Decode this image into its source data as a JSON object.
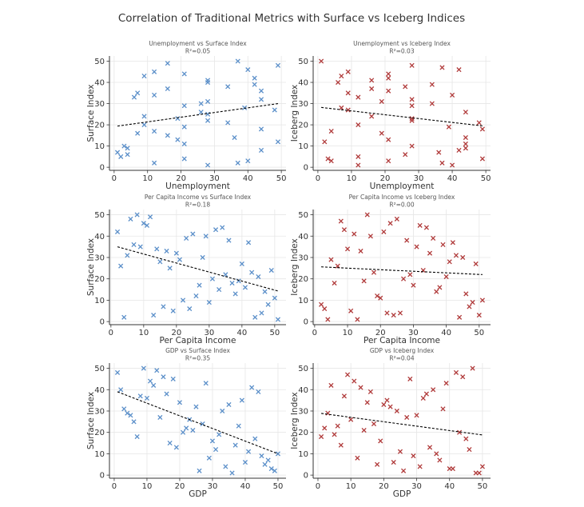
{
  "title": "Correlation of Traditional Metrics with Surface vs Iceberg Indices",
  "colors": {
    "surface": "#5b8fc9",
    "iceberg": "#b03a3a",
    "trend": "#000000"
  },
  "chart_data": [
    {
      "type": "scatter",
      "title": "Unemployment vs Surface Index",
      "r2_label": "R²=0.05",
      "xlabel": "Unemployment",
      "ylabel": "Surface Index",
      "series": "surface",
      "marker": "x",
      "grid": true,
      "xlim": [
        -1.4,
        51.4
      ],
      "ylim": [
        -1.45,
        52.45
      ],
      "xticks": [
        "0",
        "10",
        "20",
        "30",
        "40",
        "50"
      ],
      "yticks": [
        "0",
        "10",
        "20",
        "30",
        "40",
        "50"
      ],
      "trend": [
        [
          1,
          19.4
        ],
        [
          49,
          30.0
        ]
      ],
      "points": [
        [
          1,
          7
        ],
        [
          2,
          5
        ],
        [
          3,
          10
        ],
        [
          4,
          9
        ],
        [
          4,
          6
        ],
        [
          6,
          33
        ],
        [
          7,
          35
        ],
        [
          7,
          16
        ],
        [
          9,
          43
        ],
        [
          9,
          24
        ],
        [
          9,
          20
        ],
        [
          12,
          45
        ],
        [
          12,
          34
        ],
        [
          12,
          17
        ],
        [
          12,
          2
        ],
        [
          16,
          49
        ],
        [
          16,
          37
        ],
        [
          16,
          15
        ],
        [
          19,
          23
        ],
        [
          19,
          13
        ],
        [
          21,
          44
        ],
        [
          21,
          29
        ],
        [
          21,
          19
        ],
        [
          21,
          11
        ],
        [
          21,
          4
        ],
        [
          26,
          30
        ],
        [
          26,
          26
        ],
        [
          28,
          41
        ],
        [
          28,
          40
        ],
        [
          28,
          31
        ],
        [
          28,
          25
        ],
        [
          28,
          22
        ],
        [
          28,
          1
        ],
        [
          34,
          38
        ],
        [
          34,
          21
        ],
        [
          36,
          14
        ],
        [
          37,
          50
        ],
        [
          37,
          2
        ],
        [
          39,
          28
        ],
        [
          40,
          46
        ],
        [
          40,
          3
        ],
        [
          42,
          42
        ],
        [
          42,
          39
        ],
        [
          44,
          36
        ],
        [
          44,
          32
        ],
        [
          44,
          18
        ],
        [
          44,
          8
        ],
        [
          48,
          27
        ],
        [
          49,
          48
        ],
        [
          49,
          12
        ]
      ]
    },
    {
      "type": "scatter",
      "title": "Unemployment vs Iceberg Index",
      "r2_label": "R²=0.03",
      "xlabel": "Unemployment",
      "ylabel": "Iceberg Index",
      "series": "iceberg",
      "marker": "x",
      "grid": true,
      "xlim": [
        -1.4,
        51.4
      ],
      "ylim": [
        -1.45,
        52.45
      ],
      "xticks": [
        "0",
        "10",
        "20",
        "30",
        "40",
        "50"
      ],
      "yticks": [
        "0",
        "10",
        "20",
        "30",
        "40",
        "50"
      ],
      "trend": [
        [
          1,
          28.2
        ],
        [
          49,
          19.5
        ]
      ],
      "points": [
        [
          1,
          50
        ],
        [
          2,
          12
        ],
        [
          3,
          4
        ],
        [
          4,
          17
        ],
        [
          4,
          3
        ],
        [
          6,
          40
        ],
        [
          7,
          43
        ],
        [
          7,
          28
        ],
        [
          9,
          45
        ],
        [
          9,
          35
        ],
        [
          9,
          27
        ],
        [
          12,
          33
        ],
        [
          12,
          20
        ],
        [
          12,
          5
        ],
        [
          12,
          1
        ],
        [
          16,
          41
        ],
        [
          16,
          37
        ],
        [
          16,
          24
        ],
        [
          19,
          31
        ],
        [
          19,
          16
        ],
        [
          21,
          44
        ],
        [
          21,
          42
        ],
        [
          21,
          36
        ],
        [
          21,
          13
        ],
        [
          21,
          3
        ],
        [
          26,
          38
        ],
        [
          26,
          6
        ],
        [
          28,
          48
        ],
        [
          28,
          32
        ],
        [
          28,
          29
        ],
        [
          28,
          23
        ],
        [
          28,
          22
        ],
        [
          28,
          10
        ],
        [
          34,
          39
        ],
        [
          34,
          30
        ],
        [
          36,
          7
        ],
        [
          37,
          47
        ],
        [
          37,
          2
        ],
        [
          39,
          19
        ],
        [
          40,
          34
        ],
        [
          40,
          1
        ],
        [
          42,
          46
        ],
        [
          42,
          8
        ],
        [
          44,
          26
        ],
        [
          44,
          14
        ],
        [
          44,
          11
        ],
        [
          44,
          9
        ],
        [
          48,
          21
        ],
        [
          49,
          18
        ],
        [
          49,
          4
        ]
      ]
    },
    {
      "type": "scatter",
      "title": "Per Capita Income vs Surface Index",
      "r2_label": "R²=0.18",
      "xlabel": "Per Capita Income",
      "ylabel": "Surface Index",
      "series": "surface",
      "marker": "x",
      "grid": true,
      "xlim": [
        -0.45,
        53.45
      ],
      "ylim": [
        -1.45,
        52.45
      ],
      "xticks": [
        "0",
        "10",
        "20",
        "30",
        "40",
        "50"
      ],
      "yticks": [
        "0",
        "10",
        "20",
        "30",
        "40",
        "50"
      ],
      "trend": [
        [
          2,
          35.0
        ],
        [
          51,
          14.3
        ]
      ],
      "points": [
        [
          2,
          42
        ],
        [
          3,
          26
        ],
        [
          4,
          2
        ],
        [
          5,
          31
        ],
        [
          6,
          48
        ],
        [
          7,
          36
        ],
        [
          8,
          50
        ],
        [
          9,
          35
        ],
        [
          10,
          46
        ],
        [
          11,
          45
        ],
        [
          12,
          49
        ],
        [
          13,
          3
        ],
        [
          14,
          34
        ],
        [
          15,
          28
        ],
        [
          16,
          7
        ],
        [
          17,
          33
        ],
        [
          18,
          25
        ],
        [
          19,
          5
        ],
        [
          20,
          32
        ],
        [
          21,
          29
        ],
        [
          22,
          10
        ],
        [
          23,
          39
        ],
        [
          24,
          6
        ],
        [
          25,
          41
        ],
        [
          26,
          12
        ],
        [
          27,
          17
        ],
        [
          28,
          30
        ],
        [
          29,
          40
        ],
        [
          30,
          9
        ],
        [
          31,
          20
        ],
        [
          32,
          43
        ],
        [
          33,
          15
        ],
        [
          34,
          44
        ],
        [
          35,
          22
        ],
        [
          36,
          38
        ],
        [
          37,
          18
        ],
        [
          38,
          13
        ],
        [
          39,
          19
        ],
        [
          40,
          27
        ],
        [
          41,
          16
        ],
        [
          42,
          37
        ],
        [
          43,
          23
        ],
        [
          44,
          2
        ],
        [
          45,
          21
        ],
        [
          46,
          4
        ],
        [
          47,
          14
        ],
        [
          48,
          8
        ],
        [
          49,
          24
        ],
        [
          50,
          11
        ],
        [
          51,
          1
        ]
      ]
    },
    {
      "type": "scatter",
      "title": "Per Capita Income vs Iceberg Index",
      "r2_label": "R²=0.00",
      "xlabel": "Per Capita Income",
      "ylabel": "Iceberg Index",
      "series": "iceberg",
      "marker": "x",
      "grid": true,
      "xlim": [
        -0.45,
        53.45
      ],
      "ylim": [
        -1.45,
        52.45
      ],
      "xticks": [
        "0",
        "10",
        "20",
        "30",
        "40",
        "50"
      ],
      "yticks": [
        "0",
        "10",
        "20",
        "30",
        "40",
        "50"
      ],
      "trend": [
        [
          2,
          25.6
        ],
        [
          51,
          22.0
        ]
      ],
      "points": [
        [
          2,
          8
        ],
        [
          3,
          6
        ],
        [
          4,
          1
        ],
        [
          5,
          29
        ],
        [
          6,
          18
        ],
        [
          7,
          26
        ],
        [
          8,
          47
        ],
        [
          9,
          43
        ],
        [
          10,
          34
        ],
        [
          11,
          5
        ],
        [
          12,
          41
        ],
        [
          13,
          1
        ],
        [
          14,
          33
        ],
        [
          15,
          19
        ],
        [
          16,
          50
        ],
        [
          17,
          40
        ],
        [
          18,
          23
        ],
        [
          19,
          12
        ],
        [
          20,
          11
        ],
        [
          21,
          42
        ],
        [
          22,
          4
        ],
        [
          23,
          46
        ],
        [
          24,
          3
        ],
        [
          25,
          48
        ],
        [
          26,
          4
        ],
        [
          27,
          20
        ],
        [
          28,
          38
        ],
        [
          29,
          22
        ],
        [
          30,
          17
        ],
        [
          31,
          35
        ],
        [
          32,
          45
        ],
        [
          33,
          24
        ],
        [
          34,
          44
        ],
        [
          35,
          32
        ],
        [
          36,
          39
        ],
        [
          37,
          14
        ],
        [
          38,
          16
        ],
        [
          39,
          36
        ],
        [
          40,
          21
        ],
        [
          41,
          28
        ],
        [
          42,
          37
        ],
        [
          43,
          31
        ],
        [
          44,
          2
        ],
        [
          45,
          30
        ],
        [
          46,
          13
        ],
        [
          47,
          7
        ],
        [
          48,
          9
        ],
        [
          49,
          27
        ],
        [
          50,
          3
        ],
        [
          51,
          10
        ]
      ]
    },
    {
      "type": "scatter",
      "title": "GDP vs Surface Index",
      "r2_label": "R²=0.35",
      "xlabel": "GDP",
      "ylabel": "Surface Index",
      "series": "surface",
      "marker": "x",
      "grid": true,
      "xlim": [
        -1.45,
        52.45
      ],
      "ylim": [
        -1.45,
        52.45
      ],
      "xticks": [
        "0",
        "10",
        "20",
        "30",
        "40",
        "50"
      ],
      "yticks": [
        "0",
        "10",
        "20",
        "30",
        "40",
        "50"
      ],
      "trend": [
        [
          1,
          39.0
        ],
        [
          50,
          10.0
        ]
      ],
      "points": [
        [
          1,
          48
        ],
        [
          2,
          40
        ],
        [
          3,
          31
        ],
        [
          4,
          29
        ],
        [
          5,
          28
        ],
        [
          6,
          25
        ],
        [
          7,
          18
        ],
        [
          8,
          37
        ],
        [
          9,
          50
        ],
        [
          10,
          36
        ],
        [
          11,
          44
        ],
        [
          12,
          42
        ],
        [
          13,
          49
        ],
        [
          14,
          27
        ],
        [
          15,
          46
        ],
        [
          16,
          38
        ],
        [
          17,
          15
        ],
        [
          18,
          45
        ],
        [
          19,
          13
        ],
        [
          20,
          34
        ],
        [
          21,
          20
        ],
        [
          22,
          22
        ],
        [
          23,
          26
        ],
        [
          24,
          21
        ],
        [
          25,
          32
        ],
        [
          26,
          2
        ],
        [
          27,
          24
        ],
        [
          28,
          43
        ],
        [
          29,
          8
        ],
        [
          30,
          16
        ],
        [
          31,
          12
        ],
        [
          32,
          19
        ],
        [
          33,
          30
        ],
        [
          34,
          4
        ],
        [
          35,
          33
        ],
        [
          36,
          1
        ],
        [
          37,
          14
        ],
        [
          38,
          23
        ],
        [
          39,
          35
        ],
        [
          40,
          6
        ],
        [
          41,
          11
        ],
        [
          42,
          41
        ],
        [
          43,
          17
        ],
        [
          44,
          39
        ],
        [
          45,
          9
        ],
        [
          46,
          5
        ],
        [
          47,
          7
        ],
        [
          48,
          3
        ],
        [
          49,
          2
        ],
        [
          50,
          10
        ]
      ]
    },
    {
      "type": "scatter",
      "title": "GDP vs Iceberg Index",
      "r2_label": "R²=0.04",
      "xlabel": "GDP",
      "ylabel": "Iceberg Index",
      "series": "iceberg",
      "marker": "x",
      "grid": true,
      "xlim": [
        -1.45,
        52.45
      ],
      "ylim": [
        -1.45,
        52.45
      ],
      "xticks": [
        "0",
        "10",
        "20",
        "30",
        "40",
        "50"
      ],
      "yticks": [
        "0",
        "10",
        "20",
        "30",
        "40",
        "50"
      ],
      "trend": [
        [
          1,
          28.9
        ],
        [
          50,
          18.8
        ]
      ],
      "points": [
        [
          1,
          18
        ],
        [
          2,
          22
        ],
        [
          3,
          29
        ],
        [
          4,
          42
        ],
        [
          5,
          19
        ],
        [
          6,
          23
        ],
        [
          7,
          14
        ],
        [
          8,
          37
        ],
        [
          9,
          47
        ],
        [
          10,
          26
        ],
        [
          11,
          44
        ],
        [
          12,
          8
        ],
        [
          13,
          41
        ],
        [
          14,
          21
        ],
        [
          15,
          34
        ],
        [
          16,
          39
        ],
        [
          17,
          24
        ],
        [
          18,
          5
        ],
        [
          19,
          16
        ],
        [
          20,
          33
        ],
        [
          21,
          35
        ],
        [
          22,
          32
        ],
        [
          23,
          6
        ],
        [
          24,
          30
        ],
        [
          25,
          11
        ],
        [
          26,
          2
        ],
        [
          27,
          27
        ],
        [
          28,
          45
        ],
        [
          29,
          9
        ],
        [
          30,
          28
        ],
        [
          31,
          4
        ],
        [
          32,
          36
        ],
        [
          33,
          38
        ],
        [
          34,
          13
        ],
        [
          35,
          40
        ],
        [
          36,
          10
        ],
        [
          37,
          7
        ],
        [
          38,
          31
        ],
        [
          39,
          43
        ],
        [
          40,
          3
        ],
        [
          41,
          3
        ],
        [
          42,
          48
        ],
        [
          43,
          20
        ],
        [
          44,
          46
        ],
        [
          45,
          17
        ],
        [
          46,
          12
        ],
        [
          47,
          50
        ],
        [
          48,
          1
        ],
        [
          49,
          1
        ],
        [
          50,
          4
        ]
      ]
    }
  ]
}
